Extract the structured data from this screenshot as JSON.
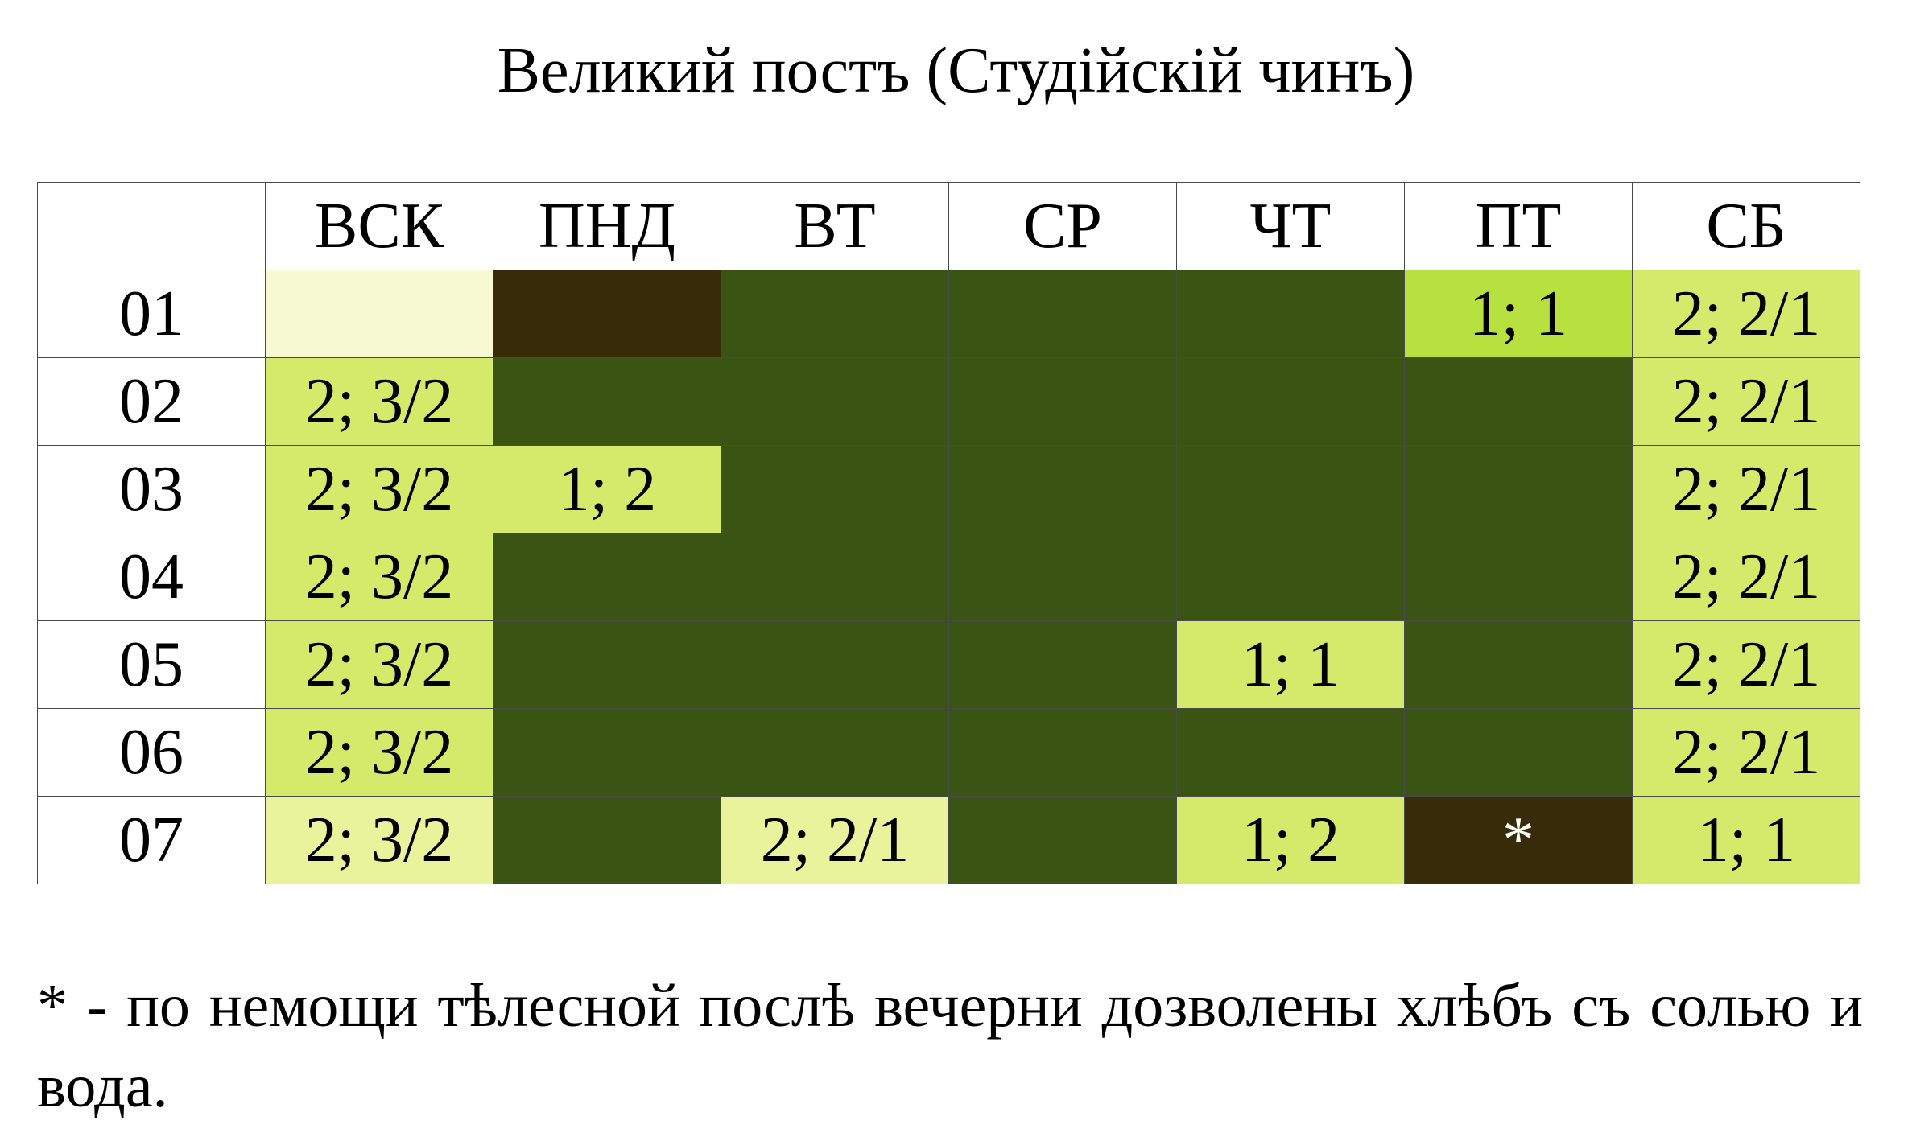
{
  "title": "Великий постъ (Студійскій чинъ)",
  "colors": {
    "white": "#ffffff",
    "cream": "#f6f9d2",
    "dark_brown": "#382b07",
    "dark_green": "#3a5413",
    "bright_green": "#b6e13e",
    "light_green": "#d5e96a",
    "pale_green": "#e8f39c"
  },
  "table": {
    "header": [
      "",
      "ВСК",
      "ПНД",
      "ВТ",
      "СР",
      "ЧТ",
      "ПТ",
      "СБ"
    ],
    "rows": [
      {
        "cells": [
          {
            "text": "01",
            "color": "white"
          },
          {
            "text": "",
            "color": "cream"
          },
          {
            "text": "",
            "color": "dark_brown"
          },
          {
            "text": "",
            "color": "dark_green"
          },
          {
            "text": "",
            "color": "dark_green"
          },
          {
            "text": "",
            "color": "dark_green"
          },
          {
            "text": "1; 1",
            "color": "bright_green"
          },
          {
            "text": "2; 2/1",
            "color": "light_green"
          }
        ]
      },
      {
        "cells": [
          {
            "text": "02",
            "color": "white"
          },
          {
            "text": "2; 3/2",
            "color": "light_green"
          },
          {
            "text": "",
            "color": "dark_green"
          },
          {
            "text": "",
            "color": "dark_green"
          },
          {
            "text": "",
            "color": "dark_green"
          },
          {
            "text": "",
            "color": "dark_green"
          },
          {
            "text": "",
            "color": "dark_green"
          },
          {
            "text": "2; 2/1",
            "color": "light_green"
          }
        ]
      },
      {
        "cells": [
          {
            "text": "03",
            "color": "white"
          },
          {
            "text": "2; 3/2",
            "color": "light_green"
          },
          {
            "text": "1; 2",
            "color": "light_green"
          },
          {
            "text": "",
            "color": "dark_green"
          },
          {
            "text": "",
            "color": "dark_green"
          },
          {
            "text": "",
            "color": "dark_green"
          },
          {
            "text": "",
            "color": "dark_green"
          },
          {
            "text": "2; 2/1",
            "color": "light_green"
          }
        ]
      },
      {
        "cells": [
          {
            "text": "04",
            "color": "white"
          },
          {
            "text": "2; 3/2",
            "color": "light_green"
          },
          {
            "text": "",
            "color": "dark_green"
          },
          {
            "text": "",
            "color": "dark_green"
          },
          {
            "text": "",
            "color": "dark_green"
          },
          {
            "text": "",
            "color": "dark_green"
          },
          {
            "text": "",
            "color": "dark_green"
          },
          {
            "text": "2; 2/1",
            "color": "light_green"
          }
        ]
      },
      {
        "cells": [
          {
            "text": "05",
            "color": "white"
          },
          {
            "text": "2; 3/2",
            "color": "light_green"
          },
          {
            "text": "",
            "color": "dark_green"
          },
          {
            "text": "",
            "color": "dark_green"
          },
          {
            "text": "",
            "color": "dark_green"
          },
          {
            "text": "1; 1",
            "color": "light_green"
          },
          {
            "text": "",
            "color": "dark_green"
          },
          {
            "text": "2; 2/1",
            "color": "light_green"
          }
        ]
      },
      {
        "cells": [
          {
            "text": "06",
            "color": "white"
          },
          {
            "text": "2; 3/2",
            "color": "light_green"
          },
          {
            "text": "",
            "color": "dark_green"
          },
          {
            "text": "",
            "color": "dark_green"
          },
          {
            "text": "",
            "color": "dark_green"
          },
          {
            "text": "",
            "color": "dark_green"
          },
          {
            "text": "",
            "color": "dark_green"
          },
          {
            "text": "2; 2/1",
            "color": "light_green"
          }
        ]
      },
      {
        "cells": [
          {
            "text": "07",
            "color": "white"
          },
          {
            "text": "2; 3/2",
            "color": "pale_green"
          },
          {
            "text": "",
            "color": "dark_green"
          },
          {
            "text": "2; 2/1",
            "color": "pale_green"
          },
          {
            "text": "",
            "color": "dark_green"
          },
          {
            "text": "1; 2",
            "color": "light_green"
          },
          {
            "text": "*",
            "color": "dark_brown"
          },
          {
            "text": "1; 1",
            "color": "light_green"
          }
        ]
      }
    ]
  },
  "footnote": "* - по немощи тѣлесной послѣ вечерни дозволены хлѣбъ съ солью и вода."
}
